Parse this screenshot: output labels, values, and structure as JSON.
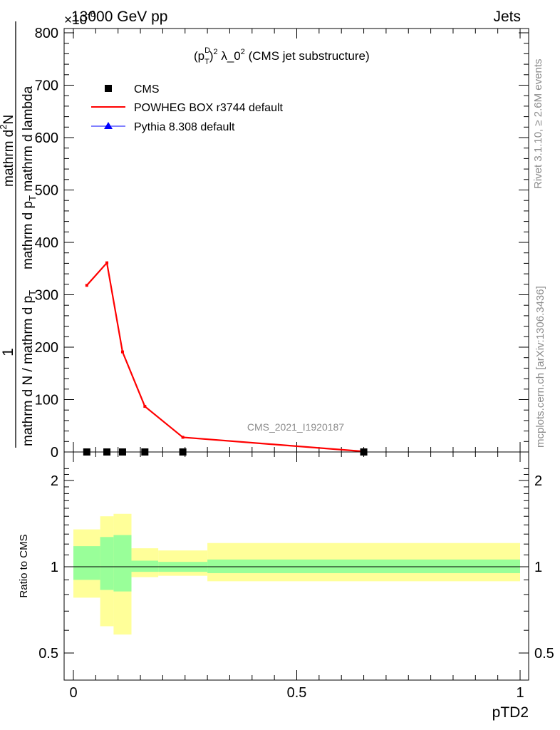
{
  "header": {
    "energy_label": "13000 GeV pp",
    "scale_label": "×10",
    "scale_exponent": "-6",
    "process_label": "Jets"
  },
  "side_labels": {
    "rivet": "Rivet 3.1.10, ≥ 2.6M events",
    "mcplots": "mcplots.cern.ch [arXiv:1306.3436]"
  },
  "watermark": "CMS_2021_I1920187",
  "colors": {
    "powheg": "#ff0000",
    "pythia": "#0000ff",
    "data": "#000000",
    "band_inner": "#99ff99",
    "band_outer": "#ffff99"
  },
  "chart_data": [
    {
      "type": "line",
      "title": "(pT^D)^2 λ_0^2 (CMS jet substructure)",
      "title_parts": {
        "pre": "(p",
        "sub": "T",
        "sup1": "D",
        "sup2": "2",
        "mid": " λ_0",
        "sup3": "2",
        "post": " (CMS jet substructure)"
      },
      "xlabel": "",
      "ylabel": "1 / (mathrm d N / mathrm d p_T) · mathrm d^2N / (mathrm d p_T mathrm d lambda)",
      "ylabel_parts": {
        "one": "1",
        "den": "mathrm d N / mathrm d p",
        "den_sub": "T",
        "num_main": "mathrm d",
        "num_sup": "2",
        "num_tail": "N",
        "num2_a": "mathrm d p",
        "num2_sub": "T",
        "num2_b": " mathrm d lambda"
      },
      "xlim": [
        0,
        1
      ],
      "ylim": [
        0,
        800
      ],
      "y_scale_factor": "×10^-6",
      "x_ticks": [
        0,
        0.5,
        1
      ],
      "y_ticks": [
        0,
        100,
        200,
        300,
        400,
        500,
        600,
        700,
        800
      ],
      "y_tick_labels": [
        "0",
        "100",
        "200",
        "300",
        "400",
        "500",
        "600",
        "700",
        "800"
      ],
      "legend_position": "top-left",
      "legend": [
        {
          "name": "CMS",
          "marker": "square"
        },
        {
          "name": "POWHEG BOX r3744 default",
          "marker": "line"
        },
        {
          "name": "Pythia 8.308 default",
          "marker": "triangle"
        }
      ],
      "series": [
        {
          "name": "CMS",
          "x": [
            0.03,
            0.075,
            0.11,
            0.16,
            0.245,
            0.65
          ],
          "y": [
            0,
            0,
            0,
            0,
            0,
            0
          ]
        },
        {
          "name": "POWHEG BOX r3744 default",
          "x": [
            0.03,
            0.075,
            0.11,
            0.16,
            0.245,
            0.65
          ],
          "y": [
            318,
            361,
            191,
            87,
            28,
            1
          ]
        }
      ]
    },
    {
      "type": "area",
      "xlabel": "pTD2",
      "ylabel": "Ratio to CMS",
      "xlim": [
        0,
        1
      ],
      "ylim": [
        0.35,
        2.3
      ],
      "x_ticks": [
        0,
        0.5,
        1
      ],
      "x_tick_labels": [
        "0",
        "0.5",
        "1"
      ],
      "y_ticks": [
        0.5,
        1,
        2
      ],
      "y_tick_labels": [
        "0.5",
        "1",
        "2"
      ],
      "bands": [
        {
          "x0": 0.0,
          "x1": 0.06,
          "inner": [
            0.9,
            1.18
          ],
          "outer": [
            0.78,
            1.35
          ]
        },
        {
          "x0": 0.06,
          "x1": 0.09,
          "inner": [
            0.83,
            1.27
          ],
          "outer": [
            0.62,
            1.5
          ]
        },
        {
          "x0": 0.09,
          "x1": 0.13,
          "inner": [
            0.82,
            1.29
          ],
          "outer": [
            0.58,
            1.53
          ]
        },
        {
          "x0": 0.13,
          "x1": 0.19,
          "inner": [
            0.96,
            1.05
          ],
          "outer": [
            0.92,
            1.16
          ]
        },
        {
          "x0": 0.19,
          "x1": 0.3,
          "inner": [
            0.96,
            1.04
          ],
          "outer": [
            0.93,
            1.14
          ]
        },
        {
          "x0": 0.3,
          "x1": 1.0,
          "inner": [
            0.95,
            1.06
          ],
          "outer": [
            0.89,
            1.21
          ]
        }
      ],
      "reference_line": 1
    }
  ]
}
